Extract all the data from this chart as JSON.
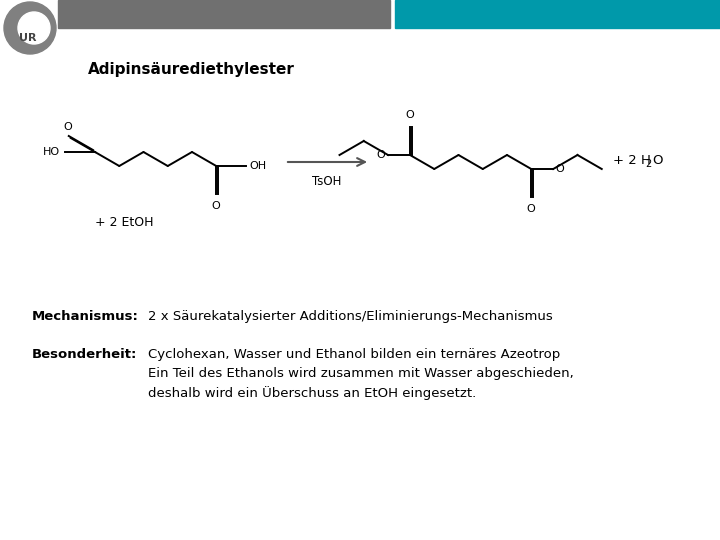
{
  "bg_color": "#ffffff",
  "header_gray_color": "#707070",
  "header_teal_color": "#0099aa",
  "title": "Adipinsäurediethylester",
  "mechanismus_label": "Mechanismus:",
  "mechanismus_text": "2 x Säurekatalysierter Additions/Eliminierungs-Mechanismus",
  "besonderheit_label": "Besonderheit:",
  "besonderheit_line1": "Cyclohexan, Wasser und Ethanol bilden ein ternäres Azeotrop",
  "besonderheit_line2": "Ein Teil des Ethanols wird zusammen mit Wasser abgeschieden,",
  "besonderheit_line3": "deshalb wird ein Überschuss an EtOH eingesetzt.",
  "text_fontsize": 9.5,
  "label_fontsize": 9.5,
  "title_fontsize": 11
}
